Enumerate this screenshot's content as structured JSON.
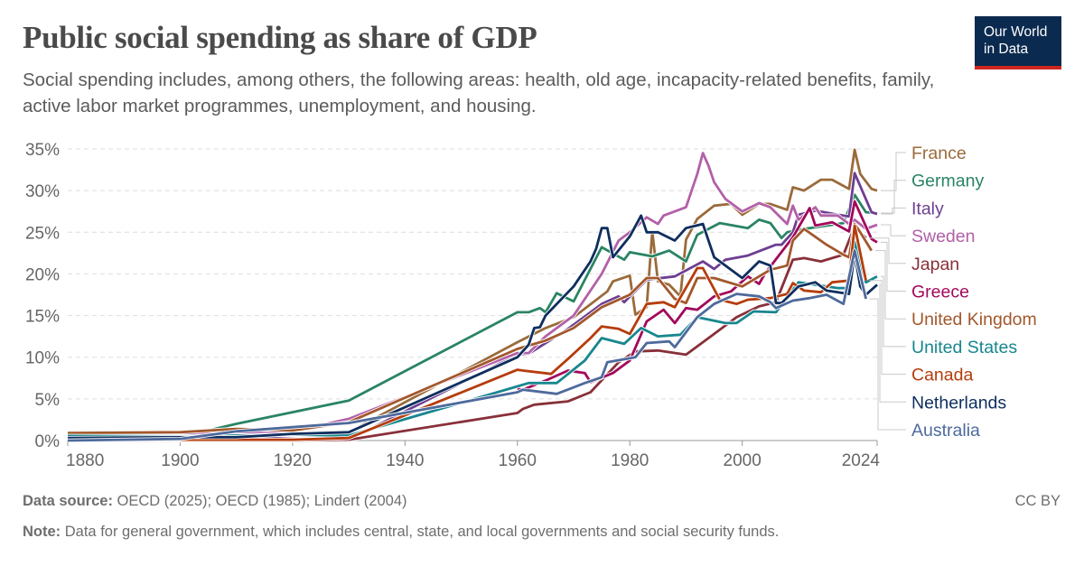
{
  "header": {
    "title": "Public social spending as share of GDP",
    "subtitle": "Social spending includes, among others, the following areas: health, old age, incapacity-related benefits, family, active labor market programmes, unemployment, and housing.",
    "logo_text": "Our World in Data"
  },
  "footer": {
    "source_label": "Data source:",
    "source_text": " OECD (2025); OECD (1985); Lindert (2004)",
    "note_label": "Note:",
    "note_text": " Data for general government, which includes central, state, and local governments and social security funds.",
    "license": "CC BY"
  },
  "chart_data": {
    "type": "line",
    "title": "Public social spending as share of GDP",
    "xlim": [
      1880,
      2024
    ],
    "ylim": [
      0,
      35
    ],
    "x_ticks": [
      1880,
      1900,
      1920,
      1940,
      1960,
      1980,
      2000,
      2024
    ],
    "x_tick_labels": [
      "1880",
      "1900",
      "1920",
      "1940",
      "1960",
      "1980",
      "2000",
      "2024"
    ],
    "y_ticks": [
      0,
      5,
      10,
      15,
      20,
      25,
      30,
      35
    ],
    "y_tick_labels": [
      "0%",
      "5%",
      "10%",
      "15%",
      "20%",
      "25%",
      "30%",
      "35%"
    ],
    "grid": "horizontal dashed",
    "legend_placement": "right, labels at line ends",
    "series": [
      {
        "name": "France",
        "color": "#9a6b3b",
        "x": [
          1880,
          1900,
          1910,
          1920,
          1930,
          1960,
          1965,
          1970,
          1976,
          1977,
          1980,
          1981,
          1983,
          1984,
          1985,
          1987,
          1989,
          1990,
          1992,
          1995,
          1998,
          2000,
          2003,
          2005,
          2008,
          2009,
          2011,
          2014,
          2016,
          2019,
          2020,
          2021,
          2023,
          2024
        ],
        "y": [
          0.5,
          0.6,
          0.8,
          0.6,
          1.0,
          11.8,
          13.5,
          14.8,
          17.9,
          19.1,
          19.8,
          15.1,
          16.0,
          25.1,
          19.1,
          18.7,
          17.3,
          24.1,
          26.6,
          28.2,
          28.4,
          27.1,
          28.4,
          28.4,
          27.7,
          30.4,
          30.0,
          31.3,
          31.3,
          30.2,
          34.9,
          32.0,
          30.2,
          30.0
        ]
      },
      {
        "name": "Germany",
        "color": "#2a8463",
        "x": [
          1880,
          1890,
          1900,
          1903,
          1910,
          1920,
          1930,
          1960,
          1962,
          1964,
          1965,
          1967,
          1970,
          1975,
          1979,
          1980,
          1984,
          1987,
          1990,
          1992,
          1996,
          2001,
          2003,
          2005,
          2007,
          2008,
          2011,
          2018,
          2020,
          2022,
          2024
        ],
        "y": [
          0.5,
          0.5,
          0.6,
          0.9,
          2.0,
          3.4,
          4.8,
          15.4,
          15.4,
          15.9,
          15.4,
          17.7,
          16.7,
          23.2,
          21.7,
          22.6,
          22.1,
          22.8,
          21.5,
          24.7,
          26.1,
          25.5,
          26.5,
          26.1,
          24.3,
          25.0,
          25.4,
          26.1,
          29.5,
          27.4,
          27.3
        ]
      },
      {
        "name": "Italy",
        "color": "#6d3e91",
        "x": [
          1880,
          1900,
          1910,
          1920,
          1925,
          1930,
          1960,
          1962,
          1969,
          1975,
          1978,
          1979,
          1983,
          1988,
          1993,
          1995,
          1997,
          2001,
          2006,
          2007,
          2009,
          2010,
          2013,
          2017,
          2019,
          2020,
          2023,
          2024
        ],
        "y": [
          0.8,
          0.9,
          0.5,
          0.2,
          0.0,
          0.1,
          10.3,
          10.4,
          13.4,
          16.4,
          17.3,
          16.6,
          19.3,
          19.7,
          21.5,
          20.6,
          21.7,
          22.2,
          23.5,
          23.5,
          25.0,
          27.1,
          27.6,
          27.1,
          26.9,
          32.1,
          27.4,
          27.2
        ]
      },
      {
        "name": "Sweden",
        "color": "#b260a8",
        "x": [
          1880,
          1900,
          1910,
          1920,
          1930,
          1960,
          1962,
          1965,
          1970,
          1975,
          1978,
          1980,
          1983,
          1985,
          1986,
          1988,
          1990,
          1992,
          1993,
          1994,
          1995,
          1997,
          2000,
          2003,
          2005,
          2008,
          2009,
          2010,
          2013,
          2014,
          2017,
          2019,
          2020,
          2022,
          2024
        ],
        "y": [
          0.8,
          0.9,
          1.0,
          1.1,
          2.6,
          10.5,
          10.5,
          12.5,
          15.0,
          20.0,
          24.0,
          25.0,
          26.8,
          26.0,
          27.0,
          27.5,
          28.0,
          32.0,
          34.5,
          33.0,
          31.0,
          29.0,
          27.5,
          28.5,
          28.0,
          26.0,
          28.2,
          26.5,
          28.0,
          27.0,
          27.0,
          26.0,
          26.5,
          25.4,
          25.9
        ]
      },
      {
        "name": "Japan",
        "color": "#883039",
        "x": [
          1880,
          1920,
          1930,
          1960,
          1961,
          1963,
          1969,
          1973,
          1978,
          1981,
          1985,
          1990,
          1995,
          1999,
          2003,
          2006,
          2009,
          2011,
          2014,
          2016,
          2018,
          2020,
          2022
        ],
        "y": [
          0.0,
          0.0,
          0.1,
          3.3,
          3.8,
          4.3,
          4.7,
          5.8,
          9.4,
          10.7,
          10.8,
          10.3,
          12.8,
          14.8,
          16.1,
          16.6,
          21.7,
          21.9,
          21.5,
          21.9,
          22.3,
          25.7,
          24.3
        ]
      },
      {
        "name": "Greece",
        "color": "#a2085a",
        "x": [
          1960,
          1961,
          1965,
          1969,
          1972,
          1973,
          1977,
          1980,
          1983,
          1986,
          1988,
          1990,
          1992,
          1995,
          1998,
          2001,
          2003,
          2004,
          2009,
          2012,
          2013,
          2016,
          2019,
          2020,
          2023,
          2024
        ],
        "y": [
          6.2,
          6.1,
          7.2,
          8.4,
          8.1,
          7.0,
          8.1,
          9.6,
          14.3,
          15.7,
          14.1,
          15.9,
          15.7,
          17.3,
          17.9,
          19.7,
          18.8,
          20.0,
          24.4,
          27.9,
          25.8,
          26.2,
          25.1,
          28.7,
          24.2,
          23.8
        ]
      },
      {
        "name": "United Kingdom",
        "color": "#a2582c",
        "x": [
          1880,
          1900,
          1910,
          1920,
          1930,
          1960,
          1965,
          1970,
          1975,
          1980,
          1983,
          1985,
          1988,
          1990,
          1992,
          1995,
          2000,
          2005,
          2008,
          2009,
          2011,
          2015,
          2018,
          2019,
          2020,
          2021,
          2023
        ],
        "y": [
          0.9,
          1.0,
          1.4,
          1.2,
          2.2,
          11.0,
          12.0,
          13.5,
          16.0,
          17.5,
          19.5,
          19.5,
          17.0,
          16.5,
          19.5,
          19.5,
          18.5,
          20.5,
          21.0,
          24.0,
          25.4,
          23.5,
          22.3,
          22.0,
          26.0,
          25.0,
          22.8
        ]
      },
      {
        "name": "United States",
        "color": "#18868f",
        "x": [
          1880,
          1900,
          1910,
          1920,
          1930,
          1960,
          1962,
          1967,
          1972,
          1975,
          1979,
          1982,
          1985,
          1989,
          1992,
          1997,
          1999,
          2002,
          2006,
          2010,
          2012,
          2017,
          2019,
          2020,
          2022,
          2024
        ],
        "y": [
          0.55,
          0.5,
          0.6,
          0.7,
          0.6,
          6.5,
          6.9,
          6.9,
          9.6,
          12.3,
          11.6,
          13.5,
          12.5,
          12.7,
          14.8,
          14.1,
          14.1,
          15.5,
          15.4,
          19.0,
          18.8,
          18.3,
          18.3,
          23.8,
          19.0,
          19.7
        ]
      },
      {
        "name": "Canada",
        "color": "#b53d0c",
        "x": [
          1880,
          1920,
          1930,
          1960,
          1961,
          1966,
          1969,
          1973,
          1975,
          1978,
          1980,
          1983,
          1986,
          1988,
          1992,
          1993,
          1996,
          1999,
          2001,
          2005,
          2008,
          2009,
          2011,
          2014,
          2016,
          2019,
          2020,
          2022
        ],
        "y": [
          0.1,
          0.1,
          0.3,
          8.5,
          8.4,
          8.0,
          9.8,
          12.3,
          13.7,
          13.4,
          12.8,
          16.4,
          16.6,
          16.0,
          20.7,
          20.7,
          16.9,
          16.4,
          16.9,
          17.1,
          17.6,
          18.9,
          18.0,
          17.8,
          19.0,
          19.2,
          25.8,
          19.2
        ]
      },
      {
        "name": "Netherlands",
        "color": "#0e2e5e",
        "x": [
          1880,
          1900,
          1910,
          1920,
          1930,
          1960,
          1962,
          1963,
          1964,
          1965,
          1970,
          1973,
          1974,
          1975,
          1976,
          1977,
          1980,
          1982,
          1983,
          1985,
          1988,
          1990,
          1993,
          1995,
          2000,
          2003,
          2005,
          2006,
          2007,
          2010,
          2013,
          2015,
          2019,
          2020,
          2021,
          2022,
          2024
        ],
        "y": [
          0.3,
          0.4,
          0.4,
          0.8,
          1.0,
          10.0,
          11.5,
          13.5,
          13.6,
          15.0,
          18.5,
          21.5,
          23.0,
          25.5,
          25.5,
          22.0,
          24.5,
          27.0,
          25.0,
          25.0,
          24.0,
          25.5,
          26.0,
          22.0,
          19.5,
          21.5,
          21.0,
          16.5,
          16.5,
          18.5,
          19.0,
          18.0,
          17.6,
          22.5,
          18.5,
          17.5,
          18.7
        ]
      },
      {
        "name": "Australia",
        "color": "#4e6a9c",
        "x": [
          1880,
          1900,
          1910,
          1920,
          1930,
          1960,
          1961,
          1967,
          1972,
          1975,
          1976,
          1981,
          1983,
          1987,
          1988,
          1992,
          1995,
          1999,
          2003,
          2005,
          2006,
          2009,
          2012,
          2015,
          2018,
          2020,
          2022
        ],
        "y": [
          0.0,
          0.2,
          1.1,
          1.6,
          2.1,
          5.8,
          6.1,
          5.6,
          6.9,
          7.6,
          9.4,
          10.0,
          11.7,
          11.9,
          11.2,
          14.8,
          16.4,
          17.6,
          17.3,
          16.6,
          15.9,
          16.8,
          17.1,
          17.5,
          16.4,
          22.8,
          17.0
        ]
      }
    ]
  }
}
